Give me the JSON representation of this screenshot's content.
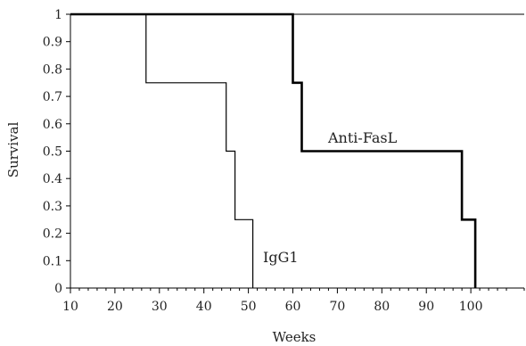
{
  "chart_data": {
    "type": "line",
    "title": "",
    "xlabel": "Weeks",
    "ylabel": "Survival",
    "xlim": [
      10,
      112
    ],
    "ylim": [
      0,
      1
    ],
    "x_ticks": [
      10,
      20,
      30,
      40,
      50,
      60,
      70,
      80,
      90,
      100
    ],
    "y_ticks": [
      0,
      0.1,
      0.2,
      0.3,
      0.4,
      0.5,
      0.6,
      0.7,
      0.8,
      0.9,
      1
    ],
    "x_tick_labels": [
      "10",
      "20",
      "30",
      "40",
      "50",
      "60",
      "70",
      "80",
      "90",
      "100"
    ],
    "y_tick_labels": [
      "0",
      "0.1",
      "0.2",
      "0.3",
      "0.4",
      "0.5",
      "0.6",
      "0.7",
      "0.8",
      "0.9",
      "1"
    ],
    "step": true,
    "grid": false,
    "legend": "none",
    "series": [
      {
        "name": "IgG1",
        "color": "#000000",
        "weight": "thin",
        "x": [
          10,
          27,
          27,
          45,
          45,
          47,
          47,
          51,
          51
        ],
        "y": [
          1,
          1,
          0.75,
          0.75,
          0.5,
          0.5,
          0.25,
          0.25,
          0
        ]
      },
      {
        "name": "Anti-FasL",
        "color": "#000000",
        "weight": "thick",
        "x": [
          10,
          60,
          60,
          62,
          62,
          98,
          98,
          101,
          101
        ],
        "y": [
          1,
          1,
          0.75,
          0.75,
          0.5,
          0.5,
          0.25,
          0.25,
          0
        ]
      }
    ]
  }
}
